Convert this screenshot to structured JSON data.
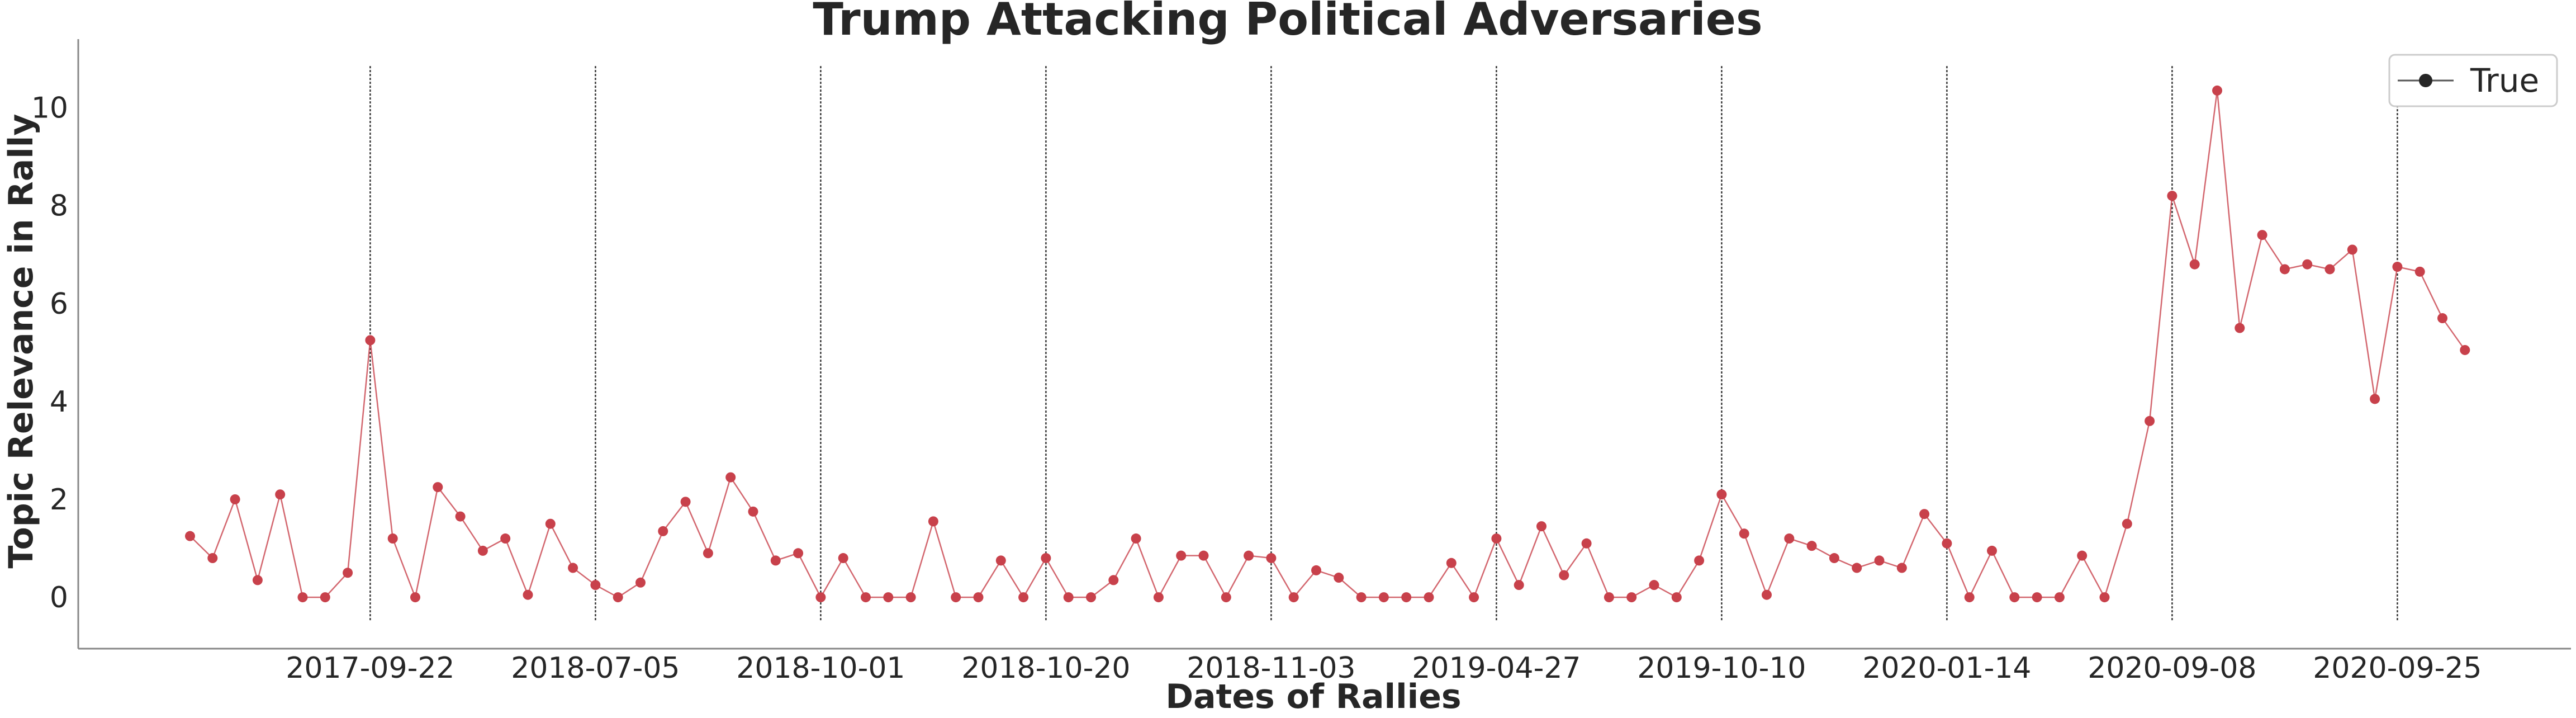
{
  "chart_data": {
    "type": "line",
    "title": "Trump Attacking Political Adversaries",
    "xlabel": "Dates of Rallies",
    "ylabel": "Topic Relevance in Rally",
    "ylim": [
      -1.05,
      11.4
    ],
    "yticks": [
      0,
      2,
      4,
      6,
      8,
      10
    ],
    "grid": false,
    "legend_position": "top-right",
    "x_tick_labels": [
      {
        "index": 8,
        "label": "2017-09-22"
      },
      {
        "index": 18,
        "label": "2018-07-05"
      },
      {
        "index": 28,
        "label": "2018-10-01"
      },
      {
        "index": 38,
        "label": "2018-10-20"
      },
      {
        "index": 48,
        "label": "2018-11-03"
      },
      {
        "index": 58,
        "label": "2019-04-27"
      },
      {
        "index": 68,
        "label": "2019-10-10"
      },
      {
        "index": 78,
        "label": "2020-01-14"
      },
      {
        "index": 88,
        "label": "2020-09-08"
      },
      {
        "index": 98,
        "label": "2020-09-25"
      }
    ],
    "vlines_at_index": [
      8,
      18,
      28,
      38,
      48,
      58,
      68,
      78,
      88,
      98
    ],
    "vline_range": [
      -0.5,
      10.85
    ],
    "series": [
      {
        "name": "True",
        "color": "#c8414b",
        "marker": "circle",
        "values": [
          1.25,
          0.8,
          2.0,
          0.35,
          2.1,
          0.0,
          0.0,
          0.5,
          5.25,
          1.2,
          0.0,
          2.25,
          1.65,
          0.95,
          1.2,
          0.05,
          1.5,
          0.6,
          0.25,
          0.0,
          0.3,
          1.35,
          1.95,
          0.9,
          2.45,
          1.75,
          0.75,
          0.9,
          0.0,
          0.8,
          0.0,
          0.0,
          0.0,
          1.55,
          0.0,
          0.0,
          0.75,
          0.0,
          0.8,
          0.0,
          0.0,
          0.35,
          1.2,
          0.0,
          0.85,
          0.85,
          0.0,
          0.85,
          0.8,
          0.0,
          0.55,
          0.4,
          0.0,
          0.0,
          0.0,
          0.0,
          0.7,
          0.0,
          1.2,
          0.25,
          1.45,
          0.45,
          1.1,
          0.0,
          0.0,
          0.25,
          0.0,
          0.75,
          2.1,
          1.3,
          0.05,
          1.2,
          1.05,
          0.8,
          0.6,
          0.75,
          0.6,
          1.7,
          1.1,
          0.0,
          0.95,
          0.0,
          0.0,
          0.0,
          0.85,
          0.0,
          1.5,
          3.6,
          8.2,
          6.8,
          10.35,
          5.5,
          7.4,
          6.7,
          6.8,
          6.7,
          7.1,
          4.05,
          6.75,
          6.65,
          5.7,
          5.05
        ]
      }
    ],
    "legend": {
      "entries": [
        "True"
      ],
      "line_color": "#555555"
    }
  }
}
